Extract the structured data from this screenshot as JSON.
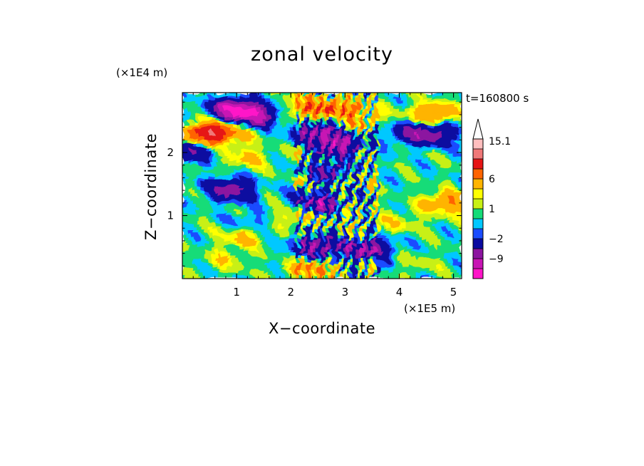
{
  "chart_data": {
    "type": "heatmap",
    "title": "zonal velocity",
    "xlabel": "X−coordinate",
    "ylabel": "Z−coordinate",
    "x_scale_label": "(×1E5 m)",
    "y_scale_label": "(×1E4 m)",
    "time_label": "t=160800 s",
    "xlim": [
      0,
      5.15
    ],
    "ylim": [
      0,
      2.95
    ],
    "x_ticks": [
      1,
      2,
      3,
      4,
      5
    ],
    "x_tick_labels": [
      "1",
      "2",
      "3",
      "4",
      "5"
    ],
    "y_ticks": [
      1,
      2
    ],
    "y_tick_labels": [
      "1",
      "2"
    ],
    "colorbar": {
      "levels": [
        -15.1,
        -12,
        -9,
        -6,
        -2,
        -1,
        0,
        1,
        2,
        3,
        6,
        9,
        12,
        15.1
      ],
      "labels": [
        {
          "value": 15.1,
          "text": "15.1"
        },
        {
          "value": 6,
          "text": "6"
        },
        {
          "value": 1,
          "text": "1"
        },
        {
          "value": -2,
          "text": "−2"
        },
        {
          "value": -9,
          "text": "−9"
        }
      ],
      "colors": [
        "#ff14c8",
        "#c814b4",
        "#8c14a0",
        "#0a0aa0",
        "#1a4cff",
        "#00c8ff",
        "#14dc78",
        "#c8f014",
        "#ffff00",
        "#ffb400",
        "#ff6400",
        "#e61414",
        "#f07878",
        "#ffbebe"
      ],
      "extend": "max",
      "extend_color": "#ffffff"
    },
    "features": [
      {
        "x": 0.9,
        "z": 2.7,
        "value": -9
      },
      {
        "x": 1.3,
        "z": 2.6,
        "value": -12
      },
      {
        "x": 0.8,
        "z": 2.3,
        "value": 6
      },
      {
        "x": 0.4,
        "z": 2.3,
        "value": 9
      },
      {
        "x": 0.15,
        "z": 2.0,
        "value": -6
      },
      {
        "x": 0.9,
        "z": 1.4,
        "value": -9
      },
      {
        "x": 1.1,
        "z": 0.65,
        "value": 3
      },
      {
        "x": 0.8,
        "z": 0.3,
        "value": 2
      },
      {
        "x": 1.3,
        "z": 0.9,
        "value": -2
      },
      {
        "x": 1.2,
        "z": 1.9,
        "value": 3
      },
      {
        "x": 2.3,
        "z": 2.7,
        "value": 6
      },
      {
        "x": 2.9,
        "z": 2.7,
        "value": 6
      },
      {
        "x": 2.5,
        "z": 2.3,
        "value": -9
      },
      {
        "x": 2.9,
        "z": 2.1,
        "value": -9
      },
      {
        "x": 2.7,
        "z": 1.7,
        "value": -6
      },
      {
        "x": 2.5,
        "z": 1.2,
        "value": -9
      },
      {
        "x": 2.5,
        "z": 0.5,
        "value": -9
      },
      {
        "x": 3.4,
        "z": 0.45,
        "value": -9
      },
      {
        "x": 4.25,
        "z": 2.3,
        "value": -6
      },
      {
        "x": 4.7,
        "z": 2.3,
        "value": -6
      },
      {
        "x": 4.6,
        "z": 2.6,
        "value": 6
      },
      {
        "x": 3.3,
        "z": 2.55,
        "value": 3
      },
      {
        "x": 4.9,
        "z": 1.2,
        "value": 6
      },
      {
        "x": 4.0,
        "z": 0.9,
        "value": 2
      },
      {
        "x": 4.3,
        "z": 0.25,
        "value": 1
      },
      {
        "x": 2.05,
        "z": 1.0,
        "value": 3
      },
      {
        "x": 2.4,
        "z": 0.15,
        "value": 6
      }
    ]
  }
}
